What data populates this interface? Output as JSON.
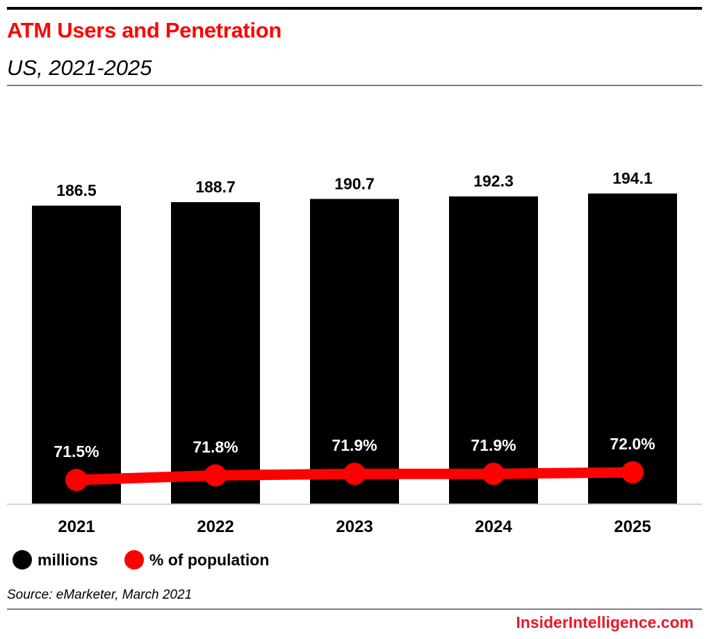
{
  "header": {
    "title": "ATM Users and Penetration",
    "subtitle": "US, 2021-2025"
  },
  "colors": {
    "title": "#ff0000",
    "bars": "#000000",
    "line": "#ff0000",
    "baseline": "#c8d3e6",
    "brand": "#e8192c"
  },
  "legend": [
    {
      "label": "millions",
      "color": "#000000"
    },
    {
      "label": "% of population",
      "color": "#ff0000"
    }
  ],
  "footer": {
    "source": "Source: eMarketer, March 2021",
    "brand": "InsiderIntelligence.com"
  },
  "chart_data": {
    "type": "bar",
    "title": "ATM Users and Penetration",
    "subtitle": "US, 2021-2025",
    "categories": [
      "2021",
      "2022",
      "2023",
      "2024",
      "2025"
    ],
    "series": [
      {
        "name": "millions",
        "type": "bar",
        "values": [
          186.5,
          188.7,
          190.7,
          192.3,
          194.1
        ],
        "labels": [
          "186.5",
          "188.7",
          "190.7",
          "192.3",
          "194.1"
        ]
      },
      {
        "name": "% of population",
        "type": "line",
        "values": [
          71.5,
          71.8,
          71.9,
          71.9,
          72.0
        ],
        "labels": [
          "71.5%",
          "71.8%",
          "71.9%",
          "71.9%",
          "72.0%"
        ]
      }
    ],
    "xlabel": "",
    "ylabel": "",
    "ylim": [
      0,
      200
    ],
    "grid": false,
    "legend_position": "bottom-left",
    "source": "Source: eMarketer, March 2021"
  }
}
